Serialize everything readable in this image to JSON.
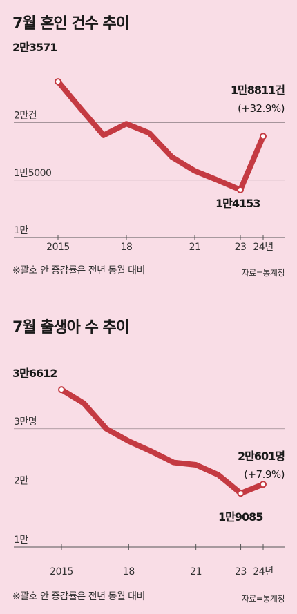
{
  "chart_data": [
    {
      "type": "line",
      "title": "7월 혼인 건수 추이",
      "x": [
        "2015",
        "2016",
        "2017",
        "2018",
        "2019",
        "2020",
        "2021",
        "2022",
        "2023",
        "2024"
      ],
      "series": [
        {
          "values": [
            23571,
            21200,
            18900,
            19900,
            19100,
            17000,
            15800,
            15000,
            14153,
            18811
          ]
        }
      ],
      "ytick_labels": [
        "1만",
        "1만5000",
        "2만건"
      ],
      "ytick_values": [
        10000,
        15000,
        20000
      ],
      "xtick_labels": [
        "2015",
        "18",
        "21",
        "23",
        "24년"
      ],
      "xtick_indices": [
        0,
        3,
        6,
        8,
        9
      ],
      "ylim": [
        10000,
        25500
      ],
      "annotations": {
        "start": "2만3571",
        "min": "1만4153",
        "end": "1만8811건",
        "end_change": "(+32.9%)"
      },
      "note": "※괄호 안 증감률은 전년 동월 대비",
      "source": "자료=통계청",
      "line_color": "#c43a42",
      "grid": true
    },
    {
      "type": "line",
      "title": "7월 출생아 수 추이",
      "x": [
        "2015",
        "2016",
        "2017",
        "2018",
        "2019",
        "2020",
        "2021",
        "2022",
        "2023",
        "2024"
      ],
      "series": [
        {
          "values": [
            36612,
            34300,
            30000,
            27900,
            26200,
            24300,
            23900,
            22200,
            19085,
            20601
          ]
        }
      ],
      "ytick_labels": [
        "1만",
        "2만",
        "3만명"
      ],
      "ytick_values": [
        10000,
        20000,
        30000
      ],
      "xtick_labels": [
        "2015",
        "18",
        "21",
        "23",
        "24년"
      ],
      "xtick_indices": [
        0,
        3,
        6,
        8,
        9
      ],
      "ylim": [
        10000,
        38500
      ],
      "annotations": {
        "start": "3만6612",
        "min": "1만9085",
        "end": "2만601명",
        "end_change": "(+7.9%)"
      },
      "note": "※괄호 안 증감률은 전년 동월 대비",
      "source": "자료=통계청",
      "line_color": "#c43a42",
      "grid": true
    }
  ]
}
